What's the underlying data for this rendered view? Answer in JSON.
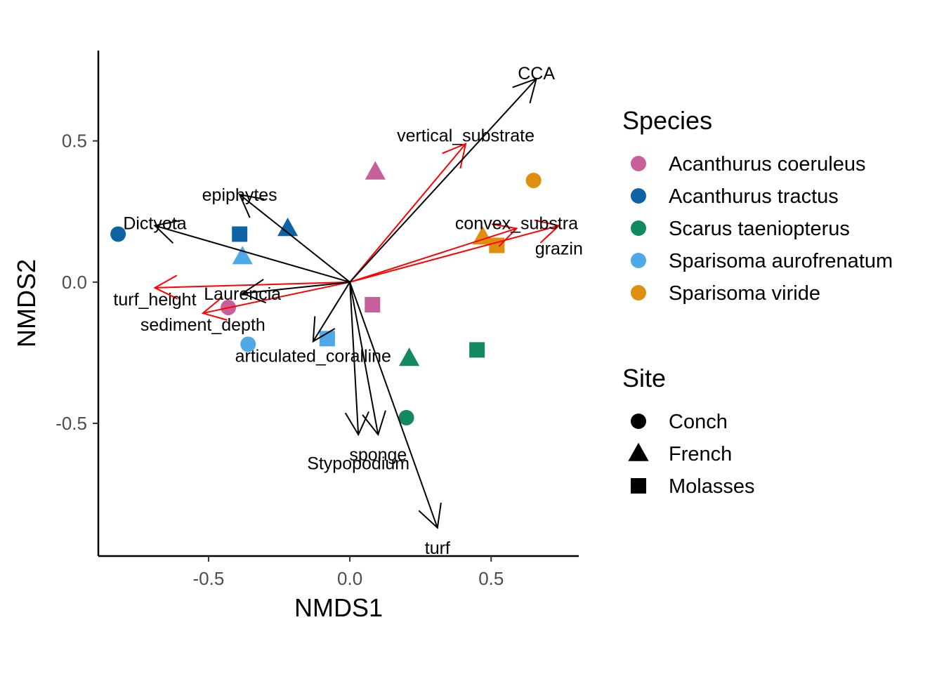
{
  "chart_data": {
    "type": "scatter",
    "xlabel": "NMDS1",
    "ylabel": "NMDS2",
    "xlim": [
      -0.89,
      0.81
    ],
    "ylim": [
      -0.97,
      0.82
    ],
    "x_ticks": [
      {
        "value": -0.5,
        "label": "-0.5"
      },
      {
        "value": 0.0,
        "label": "0.0"
      },
      {
        "value": 0.5,
        "label": "0.5"
      }
    ],
    "y_ticks": [
      {
        "value": 0.5,
        "label": "0.5"
      },
      {
        "value": 0.0,
        "label": "0.0"
      },
      {
        "value": -0.5,
        "label": "-0.5"
      }
    ],
    "grid": false,
    "legend_placement": "right",
    "species_legend": {
      "title": "Species",
      "entries": [
        {
          "name": "Acanthurus coeruleus",
          "color": "#C7609A"
        },
        {
          "name": "Acanthurus tractus",
          "color": "#0F62A3"
        },
        {
          "name": "Scarus taeniopterus",
          "color": "#12895F"
        },
        {
          "name": "Sparisoma aurofrenatum",
          "color": "#4EA9E6"
        },
        {
          "name": "Sparisoma viride",
          "color": "#DE8F0F"
        }
      ]
    },
    "site_legend": {
      "title": "Site",
      "entries": [
        {
          "name": "Conch",
          "shape": "circle"
        },
        {
          "name": "French",
          "shape": "triangle"
        },
        {
          "name": "Molasses",
          "shape": "square"
        }
      ]
    },
    "points": [
      {
        "species": "Acanthurus coeruleus",
        "site": "French",
        "x": 0.09,
        "y": 0.39
      },
      {
        "species": "Acanthurus coeruleus",
        "site": "Molasses",
        "x": 0.08,
        "y": -0.08
      },
      {
        "species": "Acanthurus coeruleus",
        "site": "Conch",
        "x": -0.43,
        "y": -0.09
      },
      {
        "species": "Acanthurus tractus",
        "site": "Conch",
        "x": -0.82,
        "y": 0.17
      },
      {
        "species": "Acanthurus tractus",
        "site": "Molasses",
        "x": -0.39,
        "y": 0.17
      },
      {
        "species": "Acanthurus tractus",
        "site": "French",
        "x": -0.22,
        "y": 0.19
      },
      {
        "species": "Scarus taeniopterus",
        "site": "Molasses",
        "x": 0.45,
        "y": -0.24
      },
      {
        "species": "Scarus taeniopterus",
        "site": "French",
        "x": 0.21,
        "y": -0.27
      },
      {
        "species": "Scarus taeniopterus",
        "site": "Conch",
        "x": 0.2,
        "y": -0.48
      },
      {
        "species": "Sparisoma aurofrenatum",
        "site": "French",
        "x": -0.38,
        "y": 0.09
      },
      {
        "species": "Sparisoma aurofrenatum",
        "site": "Conch",
        "x": -0.36,
        "y": -0.22
      },
      {
        "species": "Sparisoma aurofrenatum",
        "site": "Molasses",
        "x": -0.08,
        "y": -0.2
      },
      {
        "species": "Sparisoma viride",
        "site": "Conch",
        "x": 0.65,
        "y": 0.36
      },
      {
        "species": "Sparisoma viride",
        "site": "French",
        "x": 0.47,
        "y": 0.16
      },
      {
        "species": "Sparisoma viride",
        "site": "Molasses",
        "x": 0.52,
        "y": 0.13
      }
    ],
    "species_vectors": [
      {
        "name": "CCA",
        "x": 0.66,
        "y": 0.72,
        "label_x": 0.66,
        "label_y": 0.74
      },
      {
        "name": "epiphytes",
        "x": -0.39,
        "y": 0.31,
        "label_x": -0.39,
        "label_y": 0.31
      },
      {
        "name": "Dictyota",
        "x": -0.69,
        "y": 0.2,
        "label_x": -0.69,
        "label_y": 0.21
      },
      {
        "name": "Laurencia",
        "x": -0.38,
        "y": -0.04,
        "label_x": -0.38,
        "label_y": -0.04
      },
      {
        "name": "articulated_coralline",
        "x": -0.13,
        "y": -0.21,
        "label_x": -0.13,
        "label_y": -0.26
      },
      {
        "name": "sponge",
        "x": 0.1,
        "y": -0.54,
        "label_x": 0.1,
        "label_y": -0.61
      },
      {
        "name": "Stypopodium",
        "x": 0.03,
        "y": -0.54,
        "label_x": 0.03,
        "label_y": -0.64
      },
      {
        "name": "turf",
        "x": 0.31,
        "y": -0.87,
        "label_x": 0.31,
        "label_y": -0.94
      }
    ],
    "env_vectors": [
      {
        "name": "vertical_substrate",
        "x": 0.41,
        "y": 0.49,
        "label_x": 0.41,
        "label_y": 0.52
      },
      {
        "name": "convex_substra",
        "x": 0.59,
        "y": 0.19,
        "label_x": 0.59,
        "label_y": 0.21
      },
      {
        "name": "grazin",
        "x": 0.74,
        "y": 0.2,
        "label_x": 0.74,
        "label_y": 0.12
      },
      {
        "name": "turf_height",
        "x": -0.69,
        "y": -0.02,
        "label_x": -0.69,
        "label_y": -0.06
      },
      {
        "name": "sediment_depth",
        "x": -0.52,
        "y": -0.11,
        "label_x": -0.52,
        "label_y": -0.15
      }
    ],
    "species_vector_color": "#000000",
    "env_vector_color": "#FF0000"
  }
}
